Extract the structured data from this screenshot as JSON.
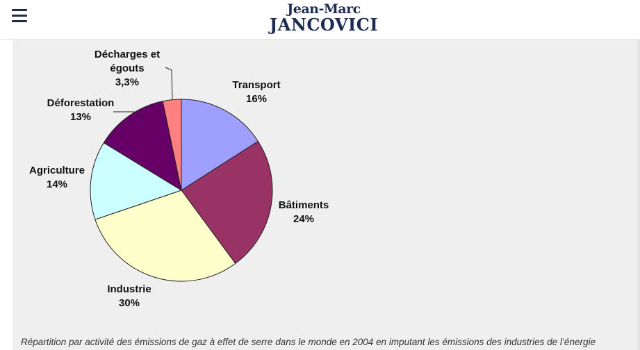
{
  "header": {
    "logo_line1": "Jean-Marc",
    "logo_line2": "JANCOVICI"
  },
  "chart_data": {
    "type": "pie",
    "slices": [
      {
        "label_lines": [
          "Transport",
          "16%"
        ],
        "value": 16,
        "color": "#9f9fff"
      },
      {
        "label_lines": [
          "Bâtiments",
          "24%"
        ],
        "value": 24,
        "color": "#993366"
      },
      {
        "label_lines": [
          "Industrie",
          "30%"
        ],
        "value": 30,
        "color": "#ffffcc"
      },
      {
        "label_lines": [
          "Agriculture",
          "14%"
        ],
        "value": 14,
        "color": "#ccffff"
      },
      {
        "label_lines": [
          "Déforestation",
          "13%"
        ],
        "value": 13,
        "color": "#660066"
      },
      {
        "label_lines": [
          "Décharges et",
          "égouts",
          "3,3%"
        ],
        "value": 3.3,
        "color": "#ff8080"
      }
    ]
  },
  "caption": "Répartition par activité des émissions de gaz à effet de serre dans le monde en 2004 en imputant les émissions des industries de l’énergie"
}
